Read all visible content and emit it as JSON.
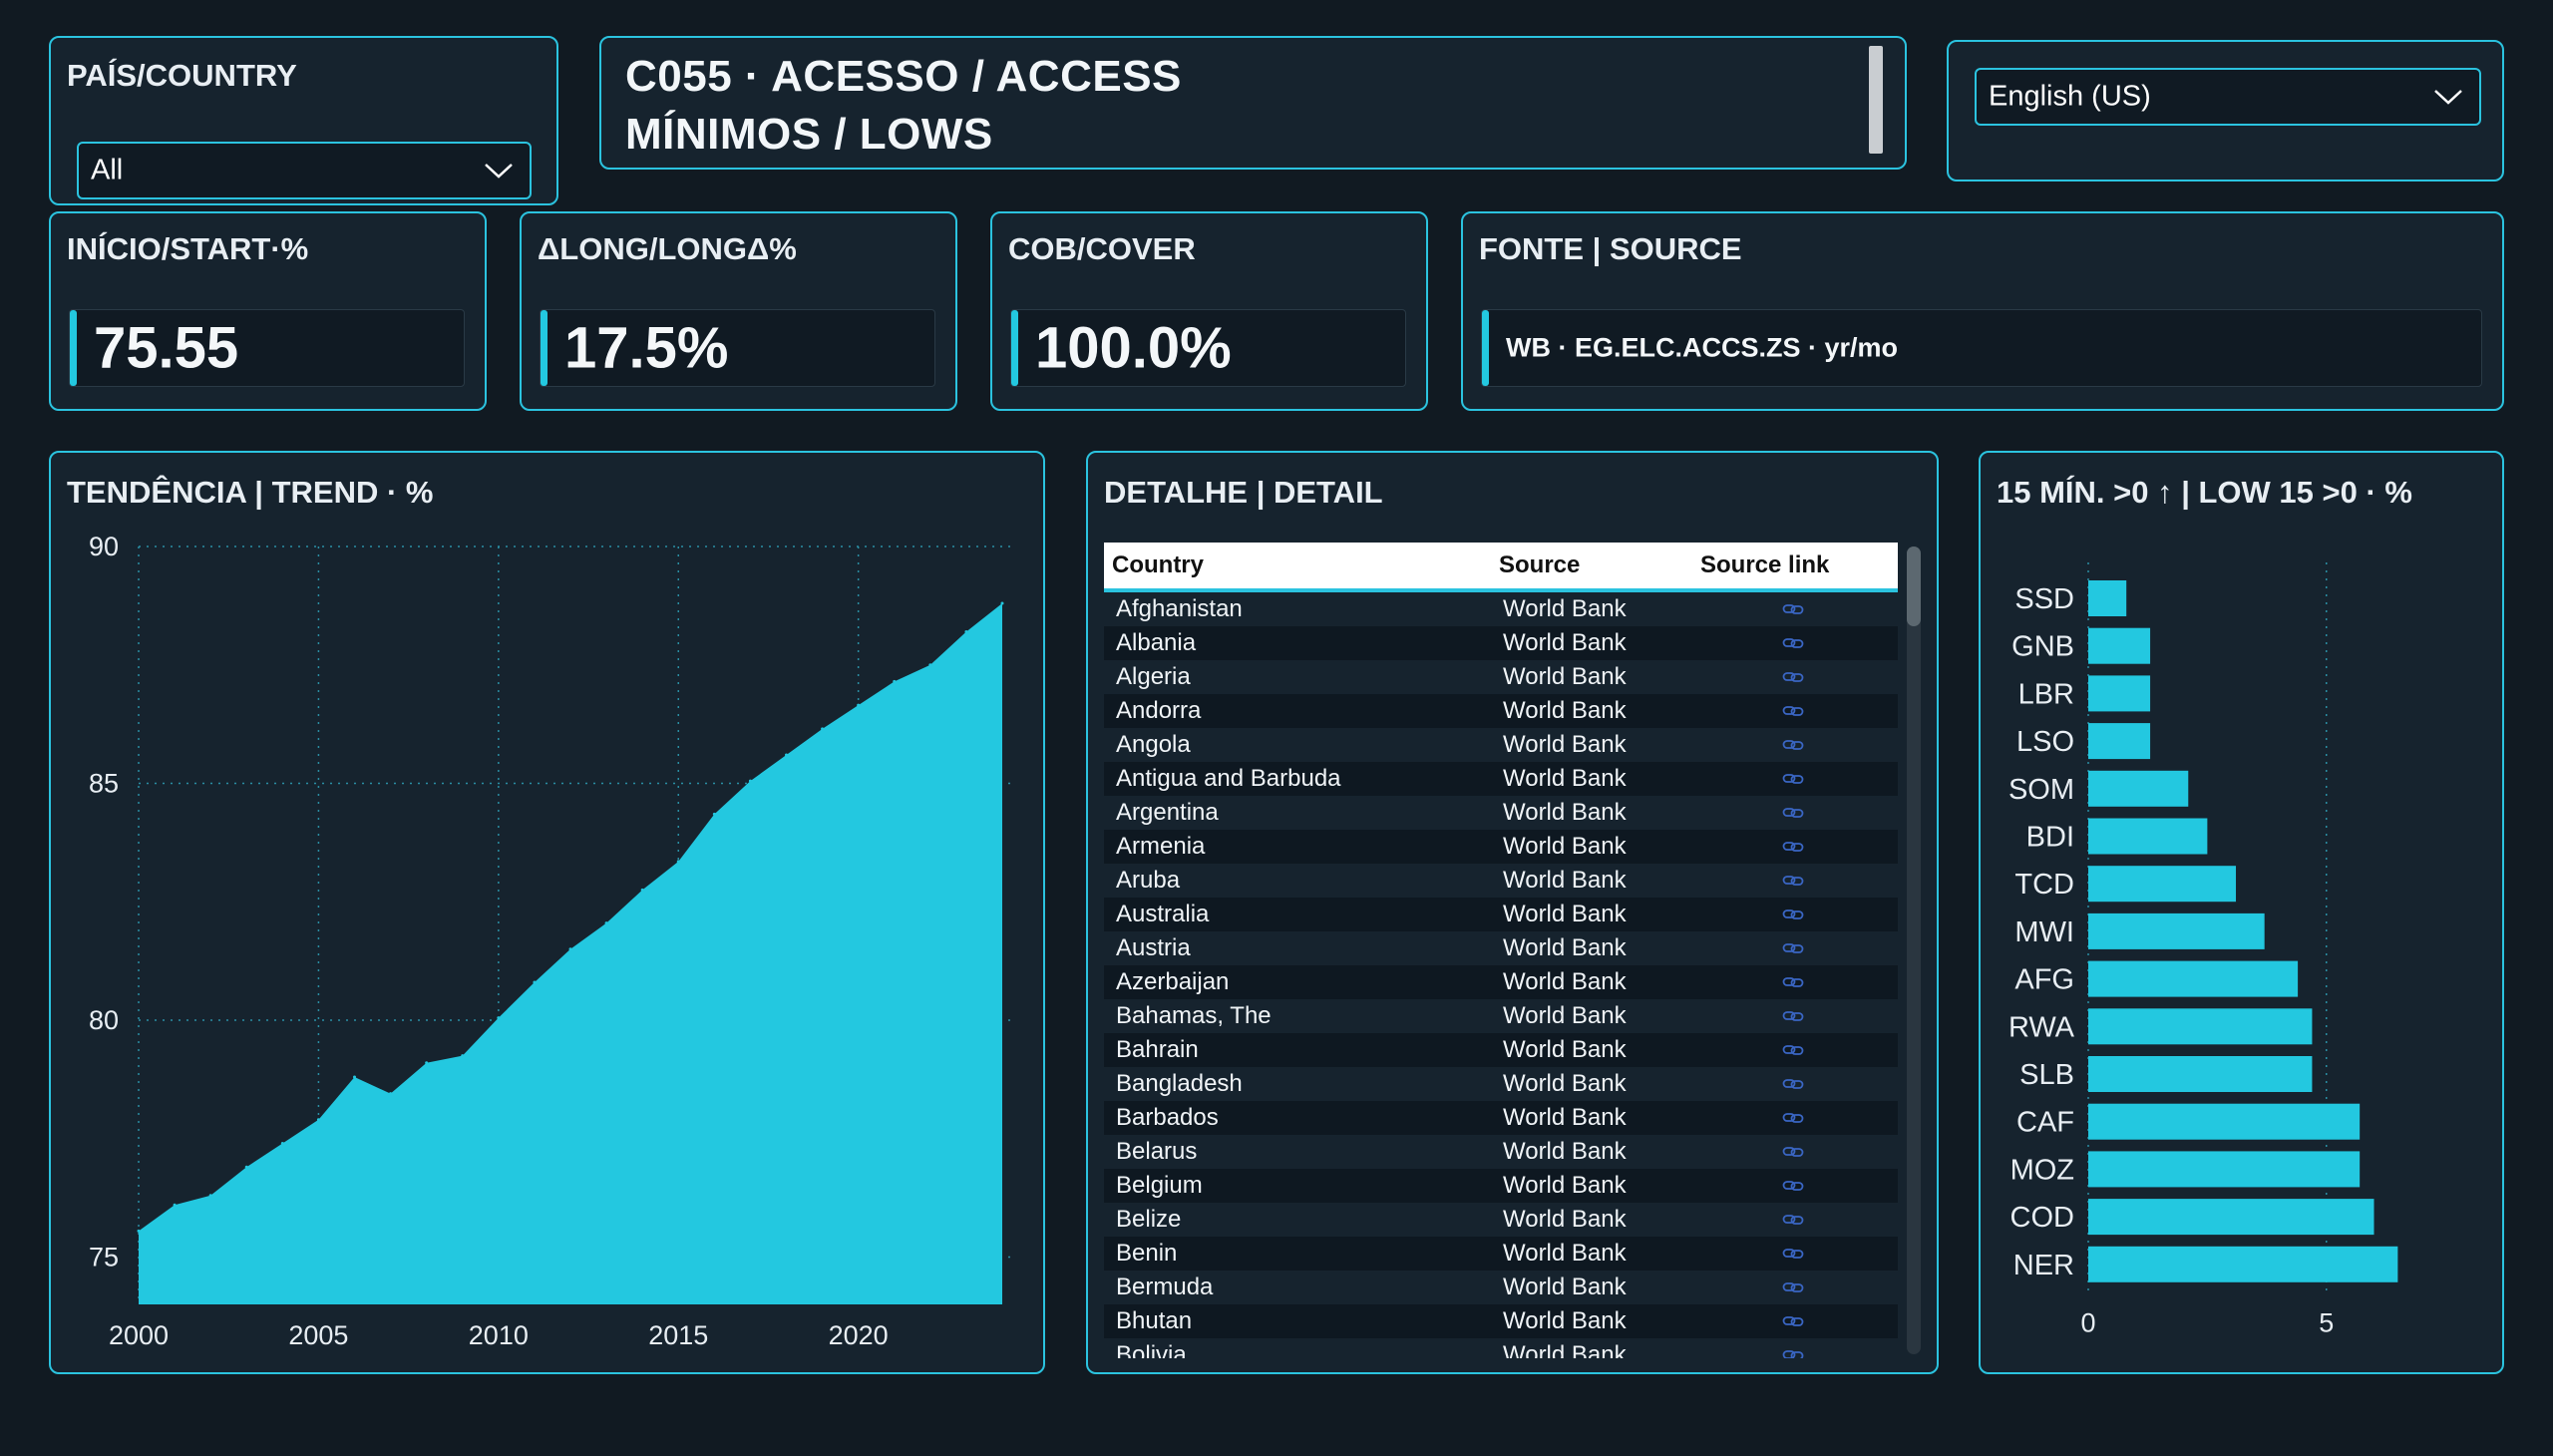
{
  "country_slicer": {
    "title": "PAÍS/COUNTRY",
    "value": "All"
  },
  "title": {
    "line1": "C055 · ACESSO / ACCESS",
    "line2": "MÍNIMOS / LOWS"
  },
  "language_select": {
    "value": "English (US)"
  },
  "kpis": [
    {
      "title": "INÍCIO/START·%",
      "value": "75.55"
    },
    {
      "title": "ΔLONG/LONGΔ%",
      "value": "17.5%"
    },
    {
      "title": "COB/COVER",
      "value": "100.0%"
    }
  ],
  "source": {
    "title": "FONTE | SOURCE",
    "value": "WB · EG.ELC.ACCS.ZS · yr/mo"
  },
  "accent_color": "#23c8e0",
  "chart_data": [
    {
      "type": "area",
      "title": "TENDÊNCIA | TREND · %",
      "x": [
        2000,
        2001,
        2002,
        2003,
        2004,
        2005,
        2006,
        2007,
        2008,
        2009,
        2010,
        2011,
        2012,
        2013,
        2014,
        2015,
        2016,
        2017,
        2018,
        2019,
        2020,
        2021,
        2022,
        2023,
        2024
      ],
      "values": [
        75.55,
        76.1,
        76.3,
        76.9,
        77.4,
        77.9,
        78.8,
        78.45,
        79.1,
        79.25,
        80.05,
        80.8,
        81.5,
        82.05,
        82.75,
        83.35,
        84.35,
        85.05,
        85.6,
        86.15,
        86.65,
        87.15,
        87.5,
        88.2,
        88.8
      ],
      "x_ticks": [
        "2000",
        "2005",
        "2010",
        "2015",
        "2020"
      ],
      "y_ticks": [
        "75",
        "80",
        "85",
        "90"
      ],
      "ylim": [
        74,
        90
      ],
      "xlim": [
        2000,
        2024
      ],
      "grid": true
    },
    {
      "type": "bar",
      "orientation": "horizontal",
      "title": "15 MÍN. >0 ↑ | LOW 15 >0 · %",
      "categories": [
        "SSD",
        "GNB",
        "LBR",
        "LSO",
        "SOM",
        "BDI",
        "TCD",
        "MWI",
        "AFG",
        "RWA",
        "SLB",
        "CAF",
        "MOZ",
        "COD",
        "NER"
      ],
      "values": [
        0.8,
        1.3,
        1.3,
        1.3,
        2.1,
        2.5,
        3.1,
        3.7,
        4.4,
        4.7,
        4.7,
        5.7,
        5.7,
        6.0,
        6.5
      ],
      "x_ticks": [
        "0",
        "5"
      ],
      "xlim": [
        0,
        8
      ],
      "grid": true
    }
  ],
  "detail_table": {
    "title": "DETALHE | DETAIL",
    "columns": [
      "Country",
      "Source",
      "Source link"
    ],
    "rows": [
      [
        "Afghanistan",
        "World Bank"
      ],
      [
        "Albania",
        "World Bank"
      ],
      [
        "Algeria",
        "World Bank"
      ],
      [
        "Andorra",
        "World Bank"
      ],
      [
        "Angola",
        "World Bank"
      ],
      [
        "Antigua and Barbuda",
        "World Bank"
      ],
      [
        "Argentina",
        "World Bank"
      ],
      [
        "Armenia",
        "World Bank"
      ],
      [
        "Aruba",
        "World Bank"
      ],
      [
        "Australia",
        "World Bank"
      ],
      [
        "Austria",
        "World Bank"
      ],
      [
        "Azerbaijan",
        "World Bank"
      ],
      [
        "Bahamas, The",
        "World Bank"
      ],
      [
        "Bahrain",
        "World Bank"
      ],
      [
        "Bangladesh",
        "World Bank"
      ],
      [
        "Barbados",
        "World Bank"
      ],
      [
        "Belarus",
        "World Bank"
      ],
      [
        "Belgium",
        "World Bank"
      ],
      [
        "Belize",
        "World Bank"
      ],
      [
        "Benin",
        "World Bank"
      ],
      [
        "Bermuda",
        "World Bank"
      ],
      [
        "Bhutan",
        "World Bank"
      ],
      [
        "Bolivia",
        "World Bank"
      ]
    ]
  }
}
